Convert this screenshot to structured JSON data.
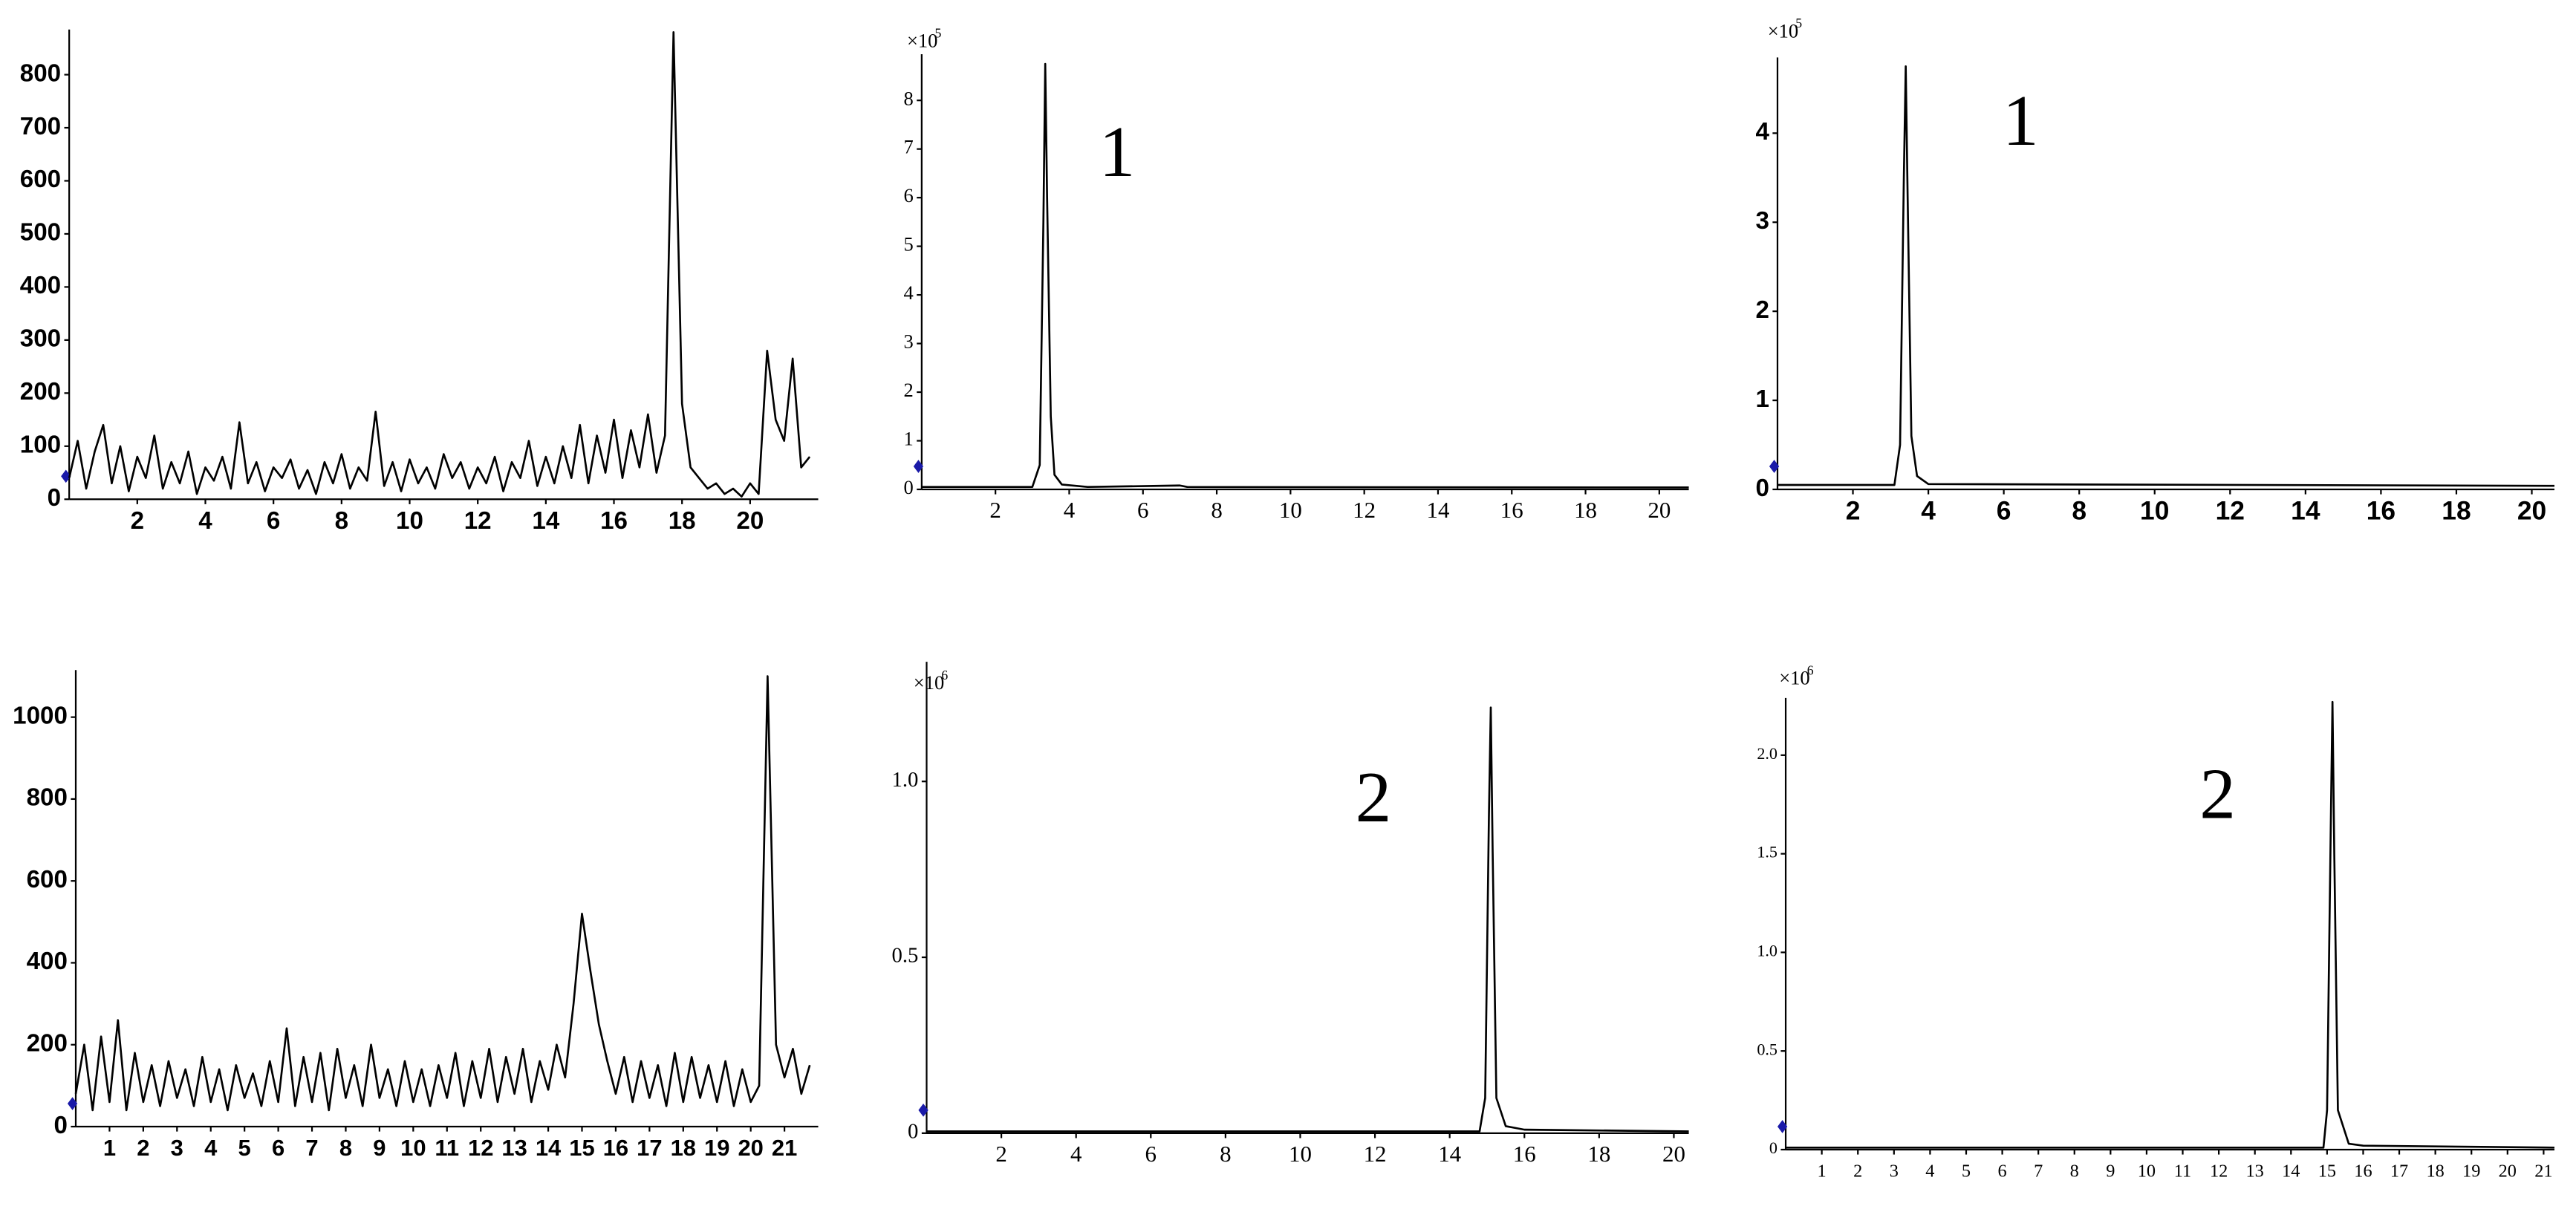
{
  "chart_data": [
    {
      "type": "line",
      "color": "#000000",
      "xlim": [
        0,
        22
      ],
      "ylim": [
        0,
        885
      ],
      "xticks": [
        2,
        4,
        6,
        8,
        10,
        12,
        14,
        16,
        18,
        20
      ],
      "yticks": [
        0,
        100,
        200,
        300,
        400,
        500,
        600,
        700,
        800
      ],
      "x": [
        0,
        0.25,
        0.5,
        0.75,
        1,
        1.25,
        1.5,
        1.75,
        2,
        2.25,
        2.5,
        2.75,
        3,
        3.25,
        3.5,
        3.75,
        4,
        4.25,
        4.5,
        4.75,
        5,
        5.25,
        5.5,
        5.75,
        6,
        6.25,
        6.5,
        6.75,
        7,
        7.25,
        7.5,
        7.75,
        8,
        8.25,
        8.5,
        8.75,
        9,
        9.25,
        9.5,
        9.75,
        10,
        10.25,
        10.5,
        10.75,
        11,
        11.25,
        11.5,
        11.75,
        12,
        12.25,
        12.5,
        12.75,
        13,
        13.25,
        13.5,
        13.75,
        14,
        14.25,
        14.5,
        14.75,
        15,
        15.25,
        15.5,
        15.75,
        16,
        16.25,
        16.5,
        16.75,
        17,
        17.25,
        17.5,
        17.75,
        18,
        18.25,
        18.5,
        18.75,
        19,
        19.25,
        19.5,
        19.75,
        20,
        20.25,
        20.5,
        20.75,
        21,
        21.25,
        21.5,
        21.75
      ],
      "values": [
        40,
        110,
        20,
        90,
        140,
        30,
        100,
        15,
        80,
        40,
        120,
        20,
        70,
        30,
        90,
        10,
        60,
        35,
        80,
        20,
        145,
        30,
        70,
        15,
        60,
        40,
        75,
        20,
        55,
        10,
        70,
        30,
        85,
        20,
        60,
        35,
        165,
        25,
        70,
        15,
        75,
        30,
        60,
        20,
        85,
        40,
        70,
        20,
        60,
        30,
        80,
        15,
        70,
        40,
        110,
        25,
        80,
        30,
        100,
        40,
        140,
        30,
        120,
        50,
        150,
        40,
        130,
        60,
        160,
        50,
        120,
        880,
        180,
        60,
        40,
        20,
        30,
        10,
        20,
        5,
        30,
        10,
        280,
        150,
        110,
        265,
        60,
        80
      ]
    },
    {
      "type": "line",
      "color": "#000000",
      "xlim": [
        0,
        20.8
      ],
      "ylim": [
        0,
        8.95
      ],
      "scale_base": "×10",
      "scale_exponent": "5",
      "annotation": "1",
      "xticks": [
        2,
        4,
        6,
        8,
        10,
        12,
        14,
        16,
        18,
        20
      ],
      "yticks": [
        0,
        1,
        2,
        3,
        4,
        5,
        6,
        7,
        8
      ],
      "x": [
        0,
        3.0,
        3.2,
        3.3,
        3.35,
        3.4,
        3.5,
        3.6,
        3.8,
        4.5,
        7,
        7.2,
        20.8
      ],
      "values": [
        0.05,
        0.05,
        0.5,
        5.5,
        8.75,
        6,
        1.5,
        0.3,
        0.1,
        0.05,
        0.08,
        0.05,
        0.04
      ]
    },
    {
      "type": "line",
      "color": "#000000",
      "xlim": [
        0,
        20.6
      ],
      "ylim": [
        0,
        4.85
      ],
      "scale_base": "×10",
      "scale_exponent": "5",
      "annotation": "1",
      "xticks": [
        2,
        4,
        6,
        8,
        10,
        12,
        14,
        16,
        18,
        20
      ],
      "yticks": [
        0,
        1,
        2,
        3,
        4
      ],
      "x": [
        0,
        3.1,
        3.25,
        3.35,
        3.4,
        3.45,
        3.55,
        3.7,
        4,
        20.6
      ],
      "values": [
        0.05,
        0.05,
        0.5,
        3.5,
        4.75,
        3.3,
        0.6,
        0.15,
        0.06,
        0.04
      ]
    },
    {
      "type": "line",
      "color": "#000000",
      "xlim": [
        0,
        22
      ],
      "ylim": [
        0,
        1115
      ],
      "xticks": [
        1,
        2,
        3,
        4,
        5,
        6,
        7,
        8,
        9,
        10,
        11,
        12,
        13,
        14,
        15,
        16,
        17,
        18,
        19,
        20,
        21
      ],
      "yticks": [
        0,
        200,
        400,
        600,
        800,
        1000
      ],
      "x": [
        0,
        0.25,
        0.5,
        0.75,
        1,
        1.25,
        1.5,
        1.75,
        2,
        2.25,
        2.5,
        2.75,
        3,
        3.25,
        3.5,
        3.75,
        4,
        4.25,
        4.5,
        4.75,
        5,
        5.25,
        5.5,
        5.75,
        6,
        6.25,
        6.5,
        6.75,
        7,
        7.25,
        7.5,
        7.75,
        8,
        8.25,
        8.5,
        8.75,
        9,
        9.25,
        9.5,
        9.75,
        10,
        10.25,
        10.5,
        10.75,
        11,
        11.25,
        11.5,
        11.75,
        12,
        12.25,
        12.5,
        12.75,
        13,
        13.25,
        13.5,
        13.75,
        14,
        14.25,
        14.5,
        14.75,
        15,
        15.25,
        15.5,
        15.75,
        16,
        16.25,
        16.5,
        16.75,
        17,
        17.25,
        17.5,
        17.75,
        18,
        18.25,
        18.5,
        18.75,
        19,
        19.25,
        19.5,
        19.75,
        20,
        20.25,
        20.5,
        20.75,
        21,
        21.25,
        21.5,
        21.75
      ],
      "values": [
        80,
        200,
        40,
        220,
        60,
        260,
        40,
        180,
        60,
        150,
        50,
        160,
        70,
        140,
        50,
        170,
        60,
        140,
        40,
        150,
        70,
        130,
        50,
        160,
        60,
        240,
        50,
        170,
        60,
        180,
        40,
        190,
        70,
        150,
        50,
        200,
        70,
        140,
        50,
        160,
        60,
        140,
        50,
        150,
        70,
        180,
        50,
        160,
        70,
        190,
        60,
        170,
        80,
        190,
        60,
        160,
        90,
        200,
        120,
        300,
        520,
        380,
        250,
        160,
        80,
        170,
        60,
        160,
        70,
        150,
        50,
        180,
        60,
        170,
        70,
        150,
        60,
        160,
        50,
        140,
        60,
        100,
        1100,
        200,
        120,
        190,
        80,
        150
      ]
    },
    {
      "type": "line",
      "color": "#000000",
      "xlim": [
        0,
        20.4
      ],
      "ylim": [
        0,
        1.34
      ],
      "scale_base": "×10",
      "scale_exponent": "6",
      "annotation": "2",
      "xticks": [
        2,
        4,
        6,
        8,
        10,
        12,
        14,
        16,
        18,
        20
      ],
      "yticks": [
        0,
        0.5,
        {
          "value": 1,
          "label": "1.0"
        }
      ],
      "x": [
        0,
        14.8,
        14.95,
        15.05,
        15.1,
        15.15,
        15.25,
        15.5,
        16,
        20.4
      ],
      "values": [
        0.005,
        0.005,
        0.1,
        0.9,
        1.21,
        0.8,
        0.1,
        0.02,
        0.01,
        0.005
      ]
    },
    {
      "type": "line",
      "color": "#000000",
      "xlim": [
        0,
        21.3
      ],
      "ylim": [
        0,
        2.29
      ],
      "scale_base": "×10",
      "scale_exponent": "6",
      "annotation": "2",
      "xticks": [
        1,
        2,
        3,
        4,
        5,
        6,
        7,
        8,
        9,
        10,
        11,
        12,
        13,
        14,
        15,
        16,
        17,
        18,
        19,
        20,
        21
      ],
      "yticks": [
        0,
        0.5,
        {
          "value": 1,
          "label": "1.0"
        },
        1.5,
        {
          "value": 2,
          "label": "2.0"
        }
      ],
      "x": [
        0,
        14.9,
        15.0,
        15.1,
        15.15,
        15.2,
        15.3,
        15.6,
        16,
        21.3
      ],
      "values": [
        0.01,
        0.01,
        0.2,
        1.6,
        2.27,
        1.5,
        0.2,
        0.03,
        0.02,
        0.01
      ]
    }
  ]
}
